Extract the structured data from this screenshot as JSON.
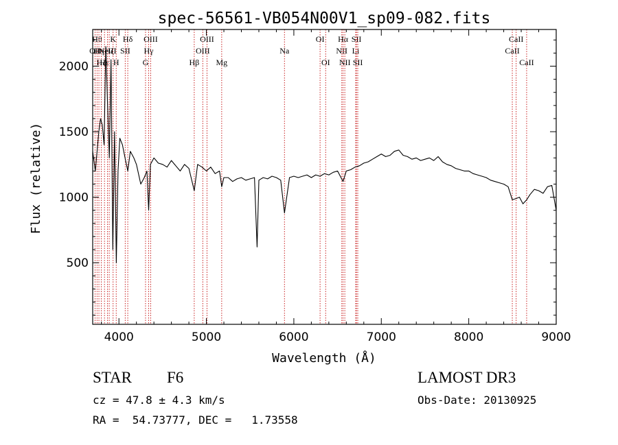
{
  "chart_data": {
    "type": "line",
    "title": "spec-56561-VB054N00V1_sp09-082.fits",
    "xlabel": "Wavelength (Å)",
    "ylabel": "Flux (relative)",
    "xlim": [
      3700,
      9000
    ],
    "ylim": [
      30,
      2280
    ],
    "xticks": [
      4000,
      5000,
      6000,
      7000,
      8000,
      9000
    ],
    "xtick_labels": [
      "4000",
      "5000",
      "6000",
      "7000",
      "8000",
      "9000"
    ],
    "yticks": [
      500,
      1000,
      1500,
      2000
    ],
    "ytick_labels": [
      "500",
      "1000",
      "1500",
      "2000"
    ],
    "grid": false,
    "series": [
      {
        "name": "spectrum",
        "color": "#000000",
        "x": [
          3700,
          3730,
          3750,
          3770,
          3790,
          3810,
          3830,
          3850,
          3870,
          3890,
          3910,
          3930,
          3950,
          3970,
          3990,
          4010,
          4040,
          4070,
          4101,
          4130,
          4170,
          4200,
          4250,
          4290,
          4320,
          4340,
          4360,
          4400,
          4450,
          4500,
          4550,
          4600,
          4650,
          4700,
          4750,
          4800,
          4861,
          4900,
          4950,
          5000,
          5050,
          5100,
          5150,
          5175,
          5200,
          5250,
          5300,
          5350,
          5400,
          5450,
          5500,
          5550,
          5580,
          5600,
          5650,
          5700,
          5750,
          5800,
          5850,
          5893,
          5950,
          6000,
          6050,
          6100,
          6150,
          6200,
          6250,
          6300,
          6350,
          6400,
          6450,
          6500,
          6563,
          6600,
          6650,
          6700,
          6750,
          6800,
          6850,
          6900,
          6950,
          7000,
          7050,
          7100,
          7150,
          7200,
          7250,
          7300,
          7350,
          7400,
          7450,
          7500,
          7550,
          7600,
          7650,
          7700,
          7750,
          7800,
          7850,
          7900,
          7950,
          8000,
          8050,
          8100,
          8150,
          8200,
          8250,
          8300,
          8350,
          8400,
          8450,
          8498,
          8542,
          8580,
          8620,
          8662,
          8700,
          8750,
          8800,
          8850,
          8900,
          8950,
          9000
        ],
        "y": [
          1350,
          1200,
          1350,
          1500,
          1600,
          1550,
          1400,
          2150,
          1700,
          1300,
          2050,
          600,
          1500,
          500,
          1200,
          1450,
          1400,
          1300,
          1200,
          1350,
          1300,
          1250,
          1100,
          1150,
          1200,
          900,
          1250,
          1300,
          1260,
          1250,
          1230,
          1280,
          1240,
          1200,
          1250,
          1220,
          1050,
          1250,
          1230,
          1200,
          1230,
          1180,
          1200,
          1080,
          1150,
          1150,
          1120,
          1140,
          1150,
          1130,
          1140,
          1150,
          620,
          1130,
          1150,
          1140,
          1160,
          1150,
          1130,
          880,
          1150,
          1160,
          1150,
          1160,
          1170,
          1150,
          1170,
          1160,
          1180,
          1170,
          1190,
          1200,
          1120,
          1200,
          1210,
          1230,
          1240,
          1260,
          1270,
          1290,
          1310,
          1330,
          1310,
          1320,
          1350,
          1360,
          1320,
          1310,
          1290,
          1300,
          1280,
          1290,
          1300,
          1280,
          1310,
          1270,
          1250,
          1240,
          1220,
          1210,
          1200,
          1200,
          1180,
          1170,
          1160,
          1150,
          1130,
          1120,
          1110,
          1100,
          1080,
          980,
          990,
          1000,
          950,
          980,
          1020,
          1060,
          1050,
          1030,
          1080,
          1090,
          900
        ]
      }
    ],
    "lines": {
      "color": "#c81e1e",
      "items": [
        {
          "x": 3727,
          "label": "OII",
          "row": 2
        },
        {
          "x": 3750,
          "label": "Hθ",
          "row": 1
        },
        {
          "x": 3771,
          "label": "Hη",
          "row": 2
        },
        {
          "x": 3798,
          "label": "Hζ",
          "row": 3
        },
        {
          "x": 3835,
          "label": "Hε",
          "row": 3
        },
        {
          "x": 3869,
          "label": "NeIII",
          "row": 2
        },
        {
          "x": 3889,
          "label": "Hζ",
          "row": 2
        },
        {
          "x": 3933,
          "label": "K",
          "row": 1
        },
        {
          "x": 3969,
          "label": "H",
          "row": 3
        },
        {
          "x": 4072,
          "label": "SII",
          "row": 2
        },
        {
          "x": 4101,
          "label": "Hδ",
          "row": 1
        },
        {
          "x": 4304,
          "label": "G",
          "row": 3
        },
        {
          "x": 4340,
          "label": "Hγ",
          "row": 2
        },
        {
          "x": 4363,
          "label": "OIII",
          "row": 1
        },
        {
          "x": 4861,
          "label": "Hβ",
          "row": 3
        },
        {
          "x": 4959,
          "label": "OIII",
          "row": 2
        },
        {
          "x": 5007,
          "label": "OIII",
          "row": 1
        },
        {
          "x": 5175,
          "label": "Mg",
          "row": 3
        },
        {
          "x": 5893,
          "label": "Na",
          "row": 2
        },
        {
          "x": 6300,
          "label": "OI",
          "row": 1
        },
        {
          "x": 6364,
          "label": "OI",
          "row": 3
        },
        {
          "x": 6548,
          "label": "NII",
          "row": 2
        },
        {
          "x": 6563,
          "label": "Hα",
          "row": 1
        },
        {
          "x": 6583,
          "label": "NII",
          "row": 3
        },
        {
          "x": 6707,
          "label": "Li",
          "row": 2
        },
        {
          "x": 6716,
          "label": "SII",
          "row": 1
        },
        {
          "x": 6731,
          "label": "SII",
          "row": 3
        },
        {
          "x": 8498,
          "label": "CaII",
          "row": 2
        },
        {
          "x": 8542,
          "label": "CaII",
          "row": 1
        },
        {
          "x": 8662,
          "label": "CaII",
          "row": 3
        }
      ]
    }
  },
  "info": {
    "class_label": "STAR",
    "subclass": "F6",
    "survey": "LAMOST DR3",
    "cz_line": "cz = 47.8 ± 4.3 km/s",
    "obs_date_line": "Obs-Date: 20130925",
    "coords_line": "RA =  54.73777, DEC =   1.73558"
  }
}
